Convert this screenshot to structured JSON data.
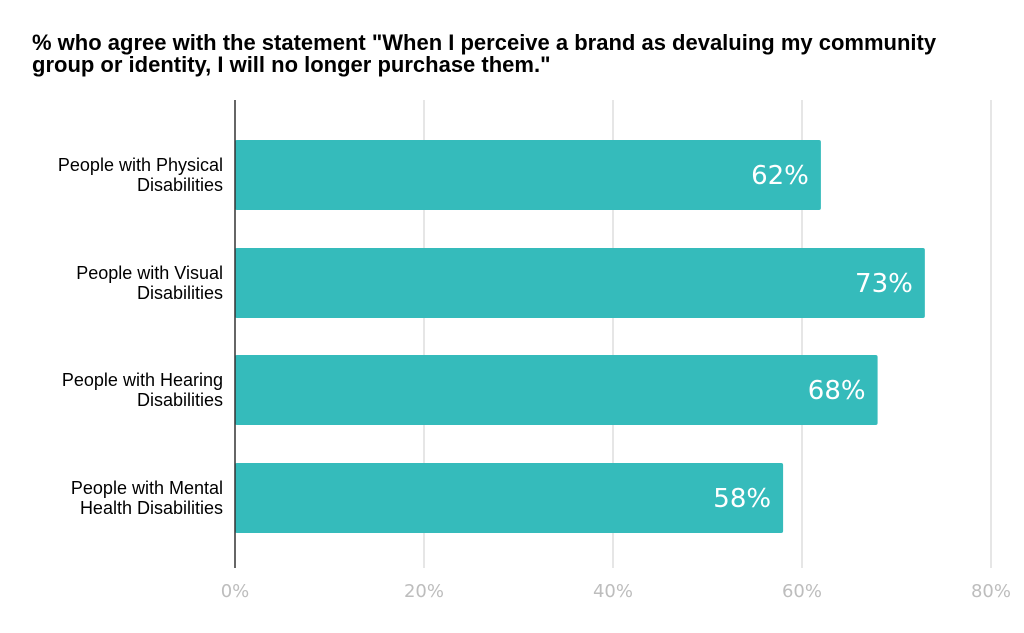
{
  "chart_data": {
    "type": "bar",
    "orientation": "horizontal",
    "title_lines": [
      "% who agree with the statement \"When I perceive a brand as devaluing my community",
      "group or identity, I will no longer purchase them.\""
    ],
    "categories": [
      [
        "People with Physical",
        "Disabilities"
      ],
      [
        "People with Visual",
        "Disabilities"
      ],
      [
        "People with Hearing",
        "Disabilities"
      ],
      [
        "People with Mental",
        "Health Disabilities"
      ]
    ],
    "values": [
      62,
      73,
      68,
      58
    ],
    "data_labels": [
      "62%",
      "73%",
      "68%",
      "58%"
    ],
    "xlim": [
      0,
      80
    ],
    "xticks": [
      0,
      20,
      40,
      60,
      80
    ],
    "xtick_labels": [
      "0%",
      "20%",
      "40%",
      "60%",
      "80%"
    ],
    "grid": true,
    "legend": "none",
    "bar_color": "#35bbbb",
    "grid_color": "#cccccc",
    "axis_color": "#333333",
    "tick_label_color": "#bdbdbd"
  }
}
